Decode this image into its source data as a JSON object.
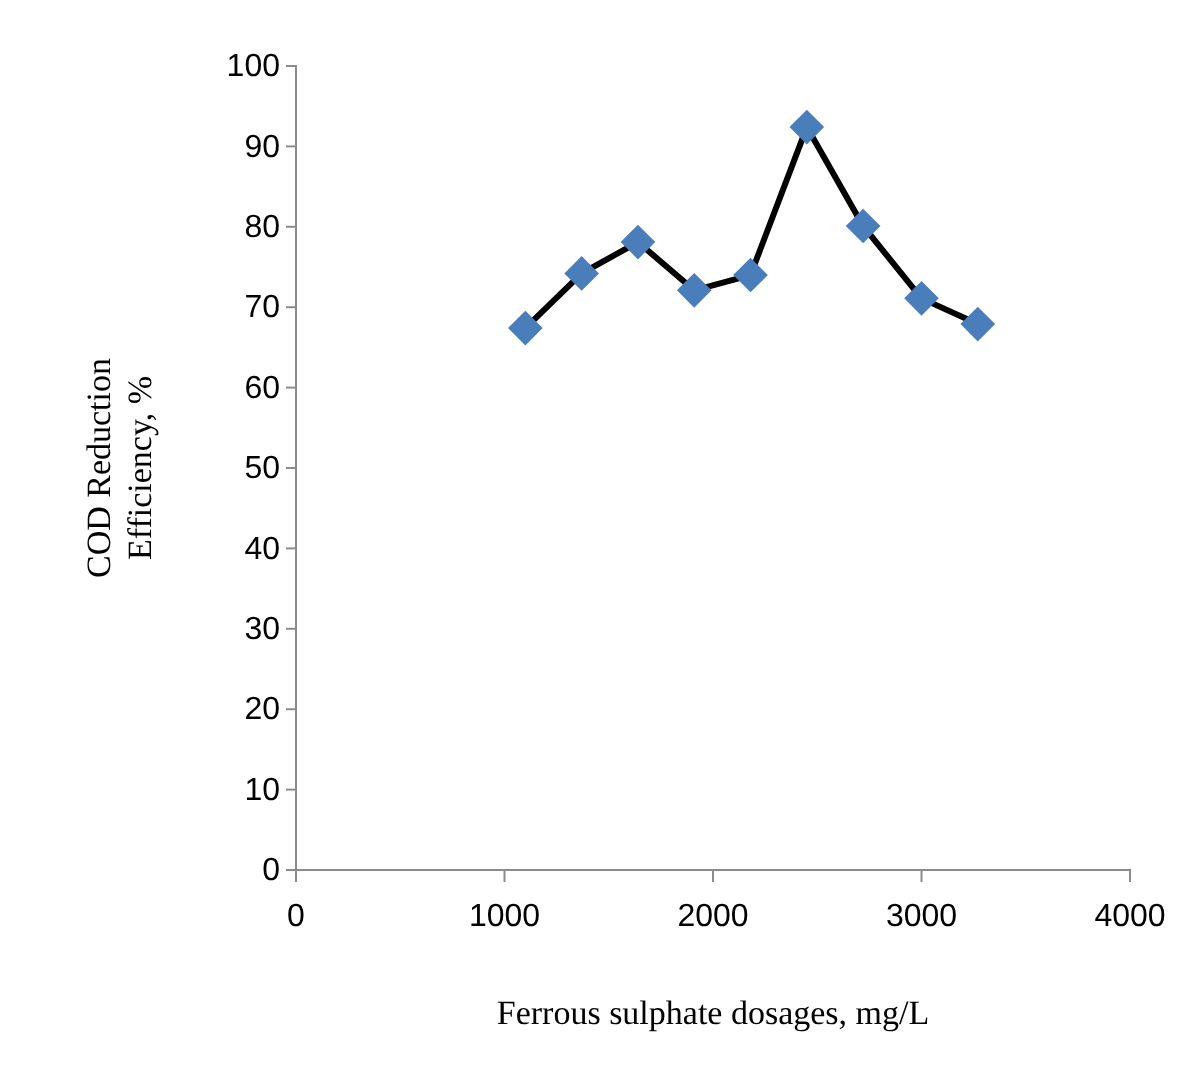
{
  "chart_data": {
    "type": "line",
    "xlabel": "Ferrous sulphate dosages, mg/L",
    "ylabel": "COD Reduction Efficiency, %",
    "x": [
      1100,
      1370,
      1640,
      1910,
      2180,
      2450,
      2720,
      3000,
      3270
    ],
    "series": [
      {
        "color": "#4a7ebb",
        "values": [
          67.4,
          74.2,
          78.1,
          72.1,
          74.0,
          92.4,
          80.1,
          71.1,
          67.9
        ]
      }
    ],
    "xlim": [
      0,
      4000
    ],
    "xticks": [
      0,
      1000,
      2000,
      3000,
      4000
    ],
    "ylim": [
      0,
      100
    ],
    "yticks": [
      0,
      10,
      20,
      30,
      40,
      50,
      60,
      70,
      80,
      90,
      100
    ],
    "marker": "diamond",
    "line_style": "solid"
  }
}
